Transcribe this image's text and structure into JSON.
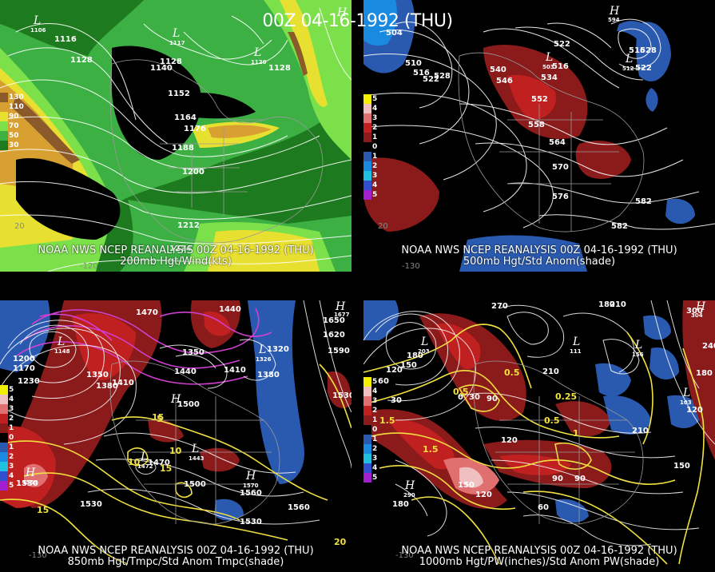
{
  "title": "00Z 04-16-1992 (THU)",
  "panels": [
    {
      "caption1": "NOAA NWS NCEP REANALYSIS 00Z 04-16-1992 (THU)",
      "caption2": "200mb Hgt/Wind(kts)",
      "legend": [
        {
          "label": "130",
          "color": "#8b5a2b"
        },
        {
          "label": "110",
          "color": "#d8a030"
        },
        {
          "label": "90",
          "color": "#e8e030"
        },
        {
          "label": "70",
          "color": "#7ce04a"
        },
        {
          "label": "50",
          "color": "#3cb043"
        },
        {
          "label": "30",
          "color": "#1e7a1e"
        }
      ],
      "contour_labels": [
        "1116",
        "1128",
        "1140",
        "1128",
        "1152",
        "1164",
        "1176",
        "1188",
        "1200",
        "1212",
        "1224",
        "1128"
      ],
      "centers": [
        {
          "type": "L",
          "value": "1106"
        },
        {
          "type": "L",
          "value": "1117"
        },
        {
          "type": "L",
          "value": "1120"
        },
        {
          "type": "H",
          "value": ""
        }
      ],
      "lon_labels": [
        "-120",
        "20"
      ]
    },
    {
      "caption1": "NOAA NWS NCEP REANALYSIS 00Z 04-16-1992 (THU)",
      "caption2": "500mb Hgt/Std Anom(shade)",
      "legend": [
        {
          "label": "5",
          "color": "#f0f000"
        },
        {
          "label": "4",
          "color": "#f0c0c0"
        },
        {
          "label": "3",
          "color": "#e07070"
        },
        {
          "label": "2",
          "color": "#c02020"
        },
        {
          "label": "1",
          "color": "#8b1a1a"
        },
        {
          "label": "0",
          "color": "#000000"
        },
        {
          "label": "1",
          "color": "#2a5ab0"
        },
        {
          "label": "2",
          "color": "#1a8ae0"
        },
        {
          "label": "3",
          "color": "#20c0e0"
        },
        {
          "label": "4",
          "color": "#3050d0"
        },
        {
          "label": "5",
          "color": "#a020d0"
        }
      ],
      "contour_labels": [
        "504",
        "510",
        "516",
        "522",
        "528",
        "522",
        "540",
        "546",
        "534",
        "516",
        "552",
        "558",
        "564",
        "570",
        "576",
        "582",
        "582",
        "516",
        "528",
        "522"
      ],
      "centers": [
        {
          "type": "L",
          "value": "503"
        },
        {
          "type": "L",
          "value": "512"
        },
        {
          "type": "H",
          "value": "594"
        }
      ],
      "lon_labels": [
        "-130",
        "20"
      ]
    },
    {
      "caption1": "NOAA NWS NCEP REANALYSIS 00Z 04-16-1992 (THU)",
      "caption2": "850mb Hgt/Tmpc/Std Anom Tmpc(shade)",
      "legend": [
        {
          "label": "5",
          "color": "#f0f000"
        },
        {
          "label": "4",
          "color": "#f0c0c0"
        },
        {
          "label": "3",
          "color": "#e07070"
        },
        {
          "label": "2",
          "color": "#c02020"
        },
        {
          "label": "1",
          "color": "#8b1a1a"
        },
        {
          "label": "0",
          "color": "#000000"
        },
        {
          "label": "1",
          "color": "#2a5ab0"
        },
        {
          "label": "2",
          "color": "#1a8ae0"
        },
        {
          "label": "3",
          "color": "#20c0e0"
        },
        {
          "label": "4",
          "color": "#3050d0"
        },
        {
          "label": "5",
          "color": "#a020d0"
        }
      ],
      "contour_labels": [
        "1470",
        "1440",
        "1650",
        "1620",
        "1590",
        "1200",
        "1170",
        "1230",
        "1350",
        "1320",
        "1380",
        "1410",
        "1440",
        "1350",
        "1380",
        "1410",
        "1500",
        "1530",
        "1470",
        "1500",
        "1530",
        "1560",
        "1530",
        "1560",
        "1530"
      ],
      "temp_labels": [
        "15",
        "10",
        "5",
        "10",
        "15",
        "15",
        "20"
      ],
      "centers": [
        {
          "type": "L",
          "value": "1148"
        },
        {
          "type": "L",
          "value": "1326"
        },
        {
          "type": "H",
          "value": "1677"
        },
        {
          "type": "H",
          "value": ""
        },
        {
          "type": "L",
          "value": "1472"
        },
        {
          "type": "L",
          "value": "1443"
        },
        {
          "type": "H",
          "value": "1570"
        },
        {
          "type": "H",
          "value": "1559"
        }
      ],
      "lon_labels": [
        "-130"
      ]
    },
    {
      "caption1": "NOAA NWS NCEP REANALYSIS 00Z 04-16-1992 (THU)",
      "caption2": "1000mb Hgt/PW(inches)/Std Anom PW(shade)",
      "legend": [
        {
          "label": "5",
          "color": "#f0f000"
        },
        {
          "label": "4",
          "color": "#f0c0c0"
        },
        {
          "label": "3",
          "color": "#e07070"
        },
        {
          "label": "2",
          "color": "#c02020"
        },
        {
          "label": "1",
          "color": "#8b1a1a"
        },
        {
          "label": "0",
          "color": "#000000"
        },
        {
          "label": "1",
          "color": "#2a5ab0"
        },
        {
          "label": "2",
          "color": "#1a8ae0"
        },
        {
          "label": "3",
          "color": "#20c0e0"
        },
        {
          "label": "4",
          "color": "#3050d0"
        },
        {
          "label": "5",
          "color": "#a020d0"
        }
      ],
      "contour_labels": [
        "270",
        "180",
        "210",
        "300",
        "180",
        "150",
        "120",
        "60",
        "30",
        "210",
        "90",
        "30",
        "0",
        "90",
        "120",
        "150",
        "120",
        "90",
        "60",
        "180",
        "210",
        "150",
        "180",
        "120",
        "240"
      ],
      "pw_labels": [
        "0.5",
        "0.25",
        "0.5",
        "1.5",
        "1",
        "1.5",
        "0.5"
      ],
      "centers": [
        {
          "type": "H",
          "value": "304"
        },
        {
          "type": "L",
          "value": "203"
        },
        {
          "type": "L",
          "value": "111"
        },
        {
          "type": "L",
          "value": "156"
        },
        {
          "type": "H",
          "value": "290"
        },
        {
          "type": "L",
          "value": "103"
        }
      ],
      "lon_labels": [
        "-130"
      ]
    }
  ],
  "colors": {
    "background": "#000000",
    "contour": "#ffffff",
    "temp_contour": "#f0e040",
    "cold_contour": "#d040d0",
    "coast": "#9a9a9a"
  }
}
